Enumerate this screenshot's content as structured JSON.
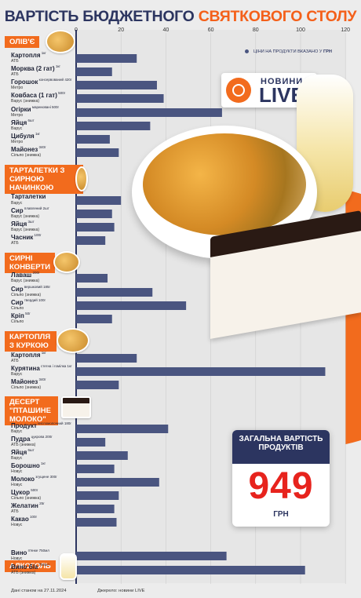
{
  "title": {
    "part1": "ВАРТІСТЬ БЮДЖЕТНОГО",
    "part2": "СВЯТКОВОГО СТОЛУ"
  },
  "legend": {
    "prefix": "ЦІНИ НА ПРОДУКТИ ВКАЗАНО У",
    "unit": "ГРН"
  },
  "logo": {
    "top": "НОВИНИ",
    "bottom": "LIVE"
  },
  "total": {
    "label": "ЗАГАЛЬНА ВАРТІСТЬ ПРОДУКТІВ",
    "value": "949",
    "currency": "ГРН"
  },
  "footer": {
    "date": "Дані станом на 27.11.2024",
    "source": "Джерело: новини LIVE"
  },
  "sections": [
    {
      "label": "ОЛІВ'Є"
    },
    {
      "label": "ТАРТАЛЕТКИ З СИРНОЮ НАЧИНКОЮ"
    },
    {
      "label": "СИРНІ КОНВЕРТИ"
    },
    {
      "label": "КАРТОПЛЯ З КУРКОЮ"
    },
    {
      "label": "ДЕСЕРТ \"ПТАШИНЕ МОЛОКО\""
    },
    {
      "label": "АЛКОГОЛЬ"
    }
  ],
  "items": [
    {
      "name": "Картопля",
      "qty": "1кг",
      "store": "АТБ"
    },
    {
      "name": "Морква (2 гат)",
      "qty": "1кг",
      "store": "АТБ"
    },
    {
      "name": "Горошок",
      "qty": "консервований 420г",
      "store": "Метро"
    },
    {
      "name": "Ковбаса (1 гат)",
      "qty": "500г",
      "store": "Варус (знижка)"
    },
    {
      "name": "Огірки",
      "qty": "мариновані 500г",
      "store": "Метро"
    },
    {
      "name": "Яйця",
      "qty": "6шт",
      "store": "Варус"
    },
    {
      "name": "Цибуля",
      "qty": "1кг",
      "store": "Метро"
    },
    {
      "name": "Майонез",
      "qty": "340г",
      "store": "Сільпо (знижка)"
    },
    {
      "name": "Тарталетки",
      "qty": "",
      "store": "Варус"
    },
    {
      "name": "Сир",
      "qty": "плавлений 2шт",
      "store": "Варус (знижка)"
    },
    {
      "name": "Яйця",
      "qty": "3шт",
      "store": "Варус (знижка)"
    },
    {
      "name": "Часник",
      "qty": "100г",
      "store": "АТБ"
    },
    {
      "name": "Лаваш",
      "qty": "200г",
      "store": "Варус (знижка)"
    },
    {
      "name": "Сир",
      "qty": "вершковий 185г",
      "store": "Сільпо (знижка)"
    },
    {
      "name": "Сир",
      "qty": "твердий 100г",
      "store": "Сільпо"
    },
    {
      "name": "Кріп",
      "qty": "50г",
      "store": "Сільпо"
    },
    {
      "name": "Картопля",
      "qty": "1кг",
      "store": "АТБ"
    },
    {
      "name": "Курятина",
      "qty": "стегна і гомілка 1кг",
      "store": "Варус"
    },
    {
      "name": "Майонез",
      "qty": "340г",
      "store": "Сільпо (знижка)"
    },
    {
      "name": "Продукт",
      "qty": "кисломолочний 180г",
      "store": "Варус"
    },
    {
      "name": "Пудра",
      "qty": "цукрова 200г",
      "store": "АТБ (знижка)"
    },
    {
      "name": "Яйця",
      "qty": "6шт",
      "store": "Варус"
    },
    {
      "name": "Борошно",
      "qty": "1кг",
      "store": "Новус"
    },
    {
      "name": "Молоко",
      "qty": "згущене 300г",
      "store": "Новус"
    },
    {
      "name": "Цукор",
      "qty": "500г",
      "store": "Сільпо (знижка)"
    },
    {
      "name": "Желатин",
      "qty": "25г",
      "store": "АТБ"
    },
    {
      "name": "Какао",
      "qty": "100г",
      "store": "Новус"
    },
    {
      "name": "Вино",
      "qty": "п'янке 750мл",
      "store": "Новус"
    },
    {
      "name": "Вино б/а",
      "qty": "750мл",
      "store": "АТБ (знижка)"
    }
  ],
  "chart_data": {
    "type": "bar",
    "orientation": "horizontal",
    "xlim": [
      0,
      120
    ],
    "xticks": [
      0,
      20,
      40,
      60,
      80,
      100,
      120
    ],
    "grid": true,
    "bar_color": "#4a5580",
    "unit": "ГРН",
    "categories": [
      "Картопля",
      "Морква (2 гат)",
      "Горошок",
      "Ковбаса (1 гат)",
      "Огірки",
      "Яйця",
      "Цибуля",
      "Майонез",
      "Тарталетки",
      "Сир",
      "Яйця",
      "Часник",
      "Лаваш",
      "Сир",
      "Сир",
      "Кріп",
      "Картопля",
      "Курятина",
      "Майонез",
      "Продукт",
      "Пудра",
      "Яйця",
      "Борошно",
      "Молоко",
      "Цукор",
      "Желатин",
      "Какао",
      "Вино",
      "Вино б/а"
    ],
    "values": [
      27,
      16,
      36,
      39,
      65,
      33,
      15,
      19,
      20,
      16,
      17,
      13,
      14,
      34,
      49,
      16,
      27,
      111,
      19,
      41,
      13,
      23,
      17,
      37,
      19,
      17,
      18,
      67,
      102
    ]
  }
}
